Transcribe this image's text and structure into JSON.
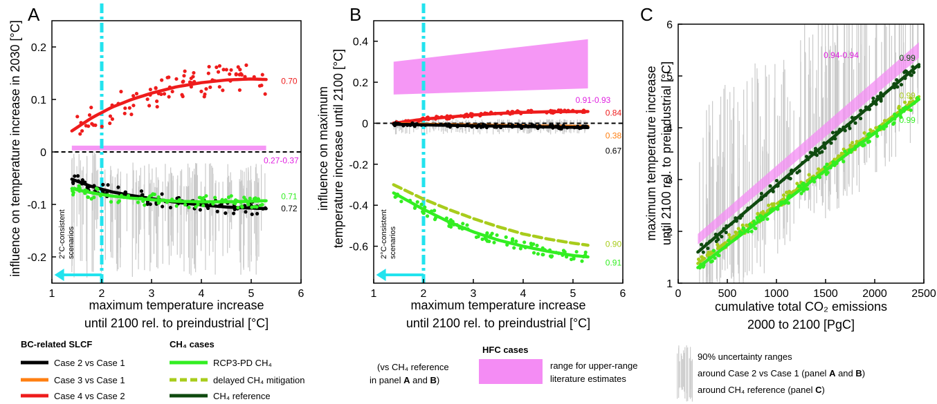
{
  "chart_data": [
    {
      "panel": "A",
      "type": "scatter",
      "xlabel": [
        "maximum temperature increase",
        "until 2100 rel. to preindustrial [°C]"
      ],
      "ylabel": "influence on temperature increase in 2030 [°C]",
      "xlim": [
        1,
        6
      ],
      "ylim": [
        -0.25,
        0.25
      ],
      "xticks": [
        1,
        2,
        3,
        4,
        5,
        6
      ],
      "yticks": [
        -0.2,
        -0.1,
        0,
        0.1,
        0.2
      ],
      "ytick_labels": [
        "-0.2",
        "-0.1",
        "0",
        "0.1",
        "0.2"
      ],
      "threshold_x": 2,
      "threshold_note": [
        "2°C-consistent",
        "scenarios"
      ],
      "hfc_band": {
        "x": [
          1.4,
          5.3
        ],
        "lower": [
          0.003,
          0.003
        ],
        "upper": [
          0.012,
          0.012
        ],
        "label": "0.27-0.37",
        "color": "#f48cf4"
      },
      "series": [
        {
          "name": "Case 4 vs Case 2",
          "color": "#ee1c1c",
          "fit_x": [
            1.4,
            1.8,
            2.2,
            2.6,
            3.0,
            3.5,
            4.0,
            4.5,
            5.0,
            5.3
          ],
          "fit_y": [
            0.04,
            0.065,
            0.085,
            0.1,
            0.112,
            0.124,
            0.132,
            0.137,
            0.139,
            0.138
          ],
          "label": "0.70"
        },
        {
          "name": "Case 2 vs Case 1",
          "color": "#000000",
          "fit_x": [
            1.4,
            1.8,
            2.2,
            2.6,
            3.0,
            3.5,
            4.0,
            4.5,
            5.0,
            5.3
          ],
          "fit_y": [
            -0.052,
            -0.066,
            -0.076,
            -0.083,
            -0.089,
            -0.096,
            -0.101,
            -0.105,
            -0.107,
            -0.108
          ],
          "label": "0.72"
        },
        {
          "name": "RCP3-PD CH4",
          "color": "#33ee22",
          "fit_x": [
            1.4,
            1.8,
            2.2,
            2.6,
            3.0,
            3.5,
            4.0,
            4.5,
            5.0,
            5.3
          ],
          "fit_y": [
            -0.07,
            -0.078,
            -0.084,
            -0.088,
            -0.091,
            -0.094,
            -0.095,
            -0.095,
            -0.094,
            -0.093
          ],
          "label": "0.71"
        }
      ],
      "uncertainty_range": {
        "lower": -0.24,
        "upper": 0.005
      }
    },
    {
      "panel": "B",
      "type": "scatter",
      "xlabel": [
        "maximum temperature increase",
        "until 2100 rel. to preindustrial [°C]"
      ],
      "ylabel": [
        "influence on maximum",
        "temperature increase until 2100 [°C]"
      ],
      "xlim": [
        1,
        6
      ],
      "ylim": [
        -0.78,
        0.5
      ],
      "xticks": [
        1,
        2,
        3,
        4,
        5,
        6
      ],
      "yticks": [
        -0.6,
        -0.4,
        -0.2,
        0,
        0.2,
        0.4
      ],
      "ytick_labels": [
        "-0.6",
        "-0.4",
        "-0.2",
        "0",
        "0.2",
        "0.4"
      ],
      "threshold_x": 2,
      "threshold_note": [
        "2°C-consistent",
        "scenarios"
      ],
      "hfc_band": {
        "x": [
          1.4,
          5.3
        ],
        "lower": [
          0.14,
          0.17
        ],
        "upper": [
          0.3,
          0.41
        ],
        "label": "0.91-0.93",
        "color": "#f48cf4"
      },
      "series": [
        {
          "name": "Case 4 vs Case 2",
          "color": "#ee1c1c",
          "fit_x": [
            1.4,
            2.0,
            2.5,
            3.0,
            3.5,
            4.0,
            4.5,
            5.0,
            5.3
          ],
          "fit_y": [
            0.0,
            0.02,
            0.03,
            0.04,
            0.048,
            0.053,
            0.056,
            0.057,
            0.057
          ],
          "label": "0.84"
        },
        {
          "name": "Case 3 vs Case 1",
          "color": "#ff7f11",
          "fit_x": [
            1.4,
            2.0,
            2.5,
            3.0,
            3.5,
            4.0,
            4.5,
            5.0,
            5.3
          ],
          "fit_y": [
            -0.003,
            -0.005,
            -0.007,
            -0.009,
            -0.011,
            -0.013,
            -0.014,
            -0.015,
            -0.015
          ],
          "label": "0.38"
        },
        {
          "name": "Case 2 vs Case 1",
          "color": "#000000",
          "fit_x": [
            1.4,
            2.0,
            2.5,
            3.0,
            3.5,
            4.0,
            4.5,
            5.0,
            5.3
          ],
          "fit_y": [
            -0.005,
            -0.008,
            -0.01,
            -0.012,
            -0.014,
            -0.016,
            -0.018,
            -0.02,
            -0.021
          ],
          "label": "0.67"
        },
        {
          "name": "delayed CH4 mitigation",
          "color": "#a8cc1c",
          "dashed": true,
          "fit_x": [
            1.4,
            2.0,
            2.5,
            3.0,
            3.5,
            4.0,
            4.5,
            5.0,
            5.3
          ],
          "fit_y": [
            -0.3,
            -0.37,
            -0.42,
            -0.465,
            -0.505,
            -0.54,
            -0.565,
            -0.585,
            -0.595
          ],
          "label": "0.90"
        },
        {
          "name": "RCP3-PD CH4",
          "color": "#33ee22",
          "fit_x": [
            1.4,
            2.0,
            2.5,
            3.0,
            3.5,
            4.0,
            4.5,
            5.0,
            5.3
          ],
          "fit_y": [
            -0.34,
            -0.42,
            -0.48,
            -0.53,
            -0.57,
            -0.6,
            -0.625,
            -0.645,
            -0.652
          ],
          "label": "0.91"
        }
      ],
      "uncertainty_range": {
        "lower": -0.04,
        "upper": 0.02
      }
    },
    {
      "panel": "C",
      "type": "scatter",
      "xlabel": [
        "cumulative total CO₂ emissions",
        "2000 to 2100 [PgC]"
      ],
      "ylabel": [
        "maximum temperature increase",
        "until 2100 rel. to preindustrial [°C]"
      ],
      "xlim": [
        0,
        2500
      ],
      "ylim": [
        1,
        6
      ],
      "xticks": [
        0,
        500,
        1000,
        1500,
        2000,
        2500
      ],
      "yticks": [
        1,
        2,
        3,
        4,
        5,
        6
      ],
      "ytick_labels": [
        "1",
        "2",
        "3",
        "4",
        "5",
        "6"
      ],
      "hfc_band": {
        "x": [
          200,
          2450
        ],
        "lower": [
          1.75,
          5.35
        ],
        "upper": [
          1.95,
          5.65
        ],
        "label": "0.94-0.94",
        "color": "#f48cf4"
      },
      "series": [
        {
          "name": "CH4 reference",
          "color": "#0f4a0f",
          "fit_x": [
            200,
            2450
          ],
          "fit_y": [
            1.6,
            5.22
          ],
          "label": "0.99"
        },
        {
          "name": "delayed CH4 mitigation",
          "color": "#a8cc1c",
          "dashed": true,
          "fit_x": [
            200,
            2450
          ],
          "fit_y": [
            1.38,
            4.6
          ],
          "label": "0.99"
        },
        {
          "name": "RCP3-PD CH4",
          "color": "#33ee22",
          "fit_x": [
            200,
            2450
          ],
          "fit_y": [
            1.3,
            4.55
          ],
          "label": "0.99"
        }
      ],
      "uncertainty_range": {
        "lower": 1.0,
        "upper": 6.0
      }
    }
  ],
  "panel_labels": {
    "A": "A",
    "B": "B",
    "C": "C"
  },
  "legend": {
    "bc_header": "BC-related SLCF",
    "bc_items": [
      {
        "label": "Case 2 vs Case 1",
        "color": "#000000"
      },
      {
        "label": "Case 3 vs Case 1",
        "color": "#ff7f11"
      },
      {
        "label": "Case 4 vs Case 2",
        "color": "#ee1c1c"
      }
    ],
    "ch4_header": "CH₄ cases",
    "ch4_items": [
      {
        "label": "RCP3-PD CH₄",
        "color": "#33ee22",
        "dashed": false
      },
      {
        "label": "delayed  CH₄ mitigation",
        "color": "#a8cc1c",
        "dashed": true
      },
      {
        "label": "CH₄ reference",
        "color": "#0f4a0f",
        "dashed": false
      }
    ],
    "ch4_note_1": "(vs CH₄ reference",
    "ch4_note_2a": "in panel ",
    "ch4_note_2b": "A",
    "ch4_note_2c": " and ",
    "ch4_note_2d": "B",
    "ch4_note_2e": ")",
    "hfc_header": "HFC cases",
    "hfc_text_1": "range for upper-range",
    "hfc_text_2": "literature estimates",
    "unc_text_1": "90% uncertainty ranges",
    "unc_text_2a": "around Case 2 vs Case 1 (panel ",
    "unc_text_2b": "A",
    "unc_text_2c": " and ",
    "unc_text_2d": "B",
    "unc_text_2e": ")",
    "unc_text_3a": "around CH₄ reference  (panel ",
    "unc_text_3b": "C",
    "unc_text_3c": ")"
  }
}
